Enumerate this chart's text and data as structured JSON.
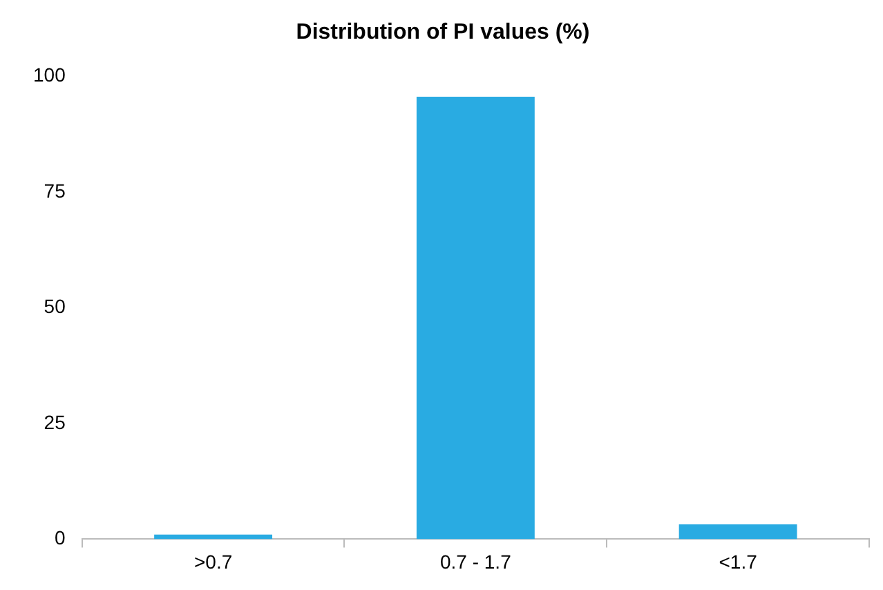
{
  "chart_data": {
    "type": "bar",
    "title": "Distribution of PI values (%)",
    "categories": [
      ">0.7",
      "0.7 - 1.7",
      "<1.7"
    ],
    "values": [
      1,
      95.6,
      3.2
    ],
    "color": "#29abe2",
    "ylim": [
      0,
      100
    ],
    "yticks": [
      0,
      25,
      50,
      75,
      100
    ],
    "grid": false,
    "legend": false
  }
}
